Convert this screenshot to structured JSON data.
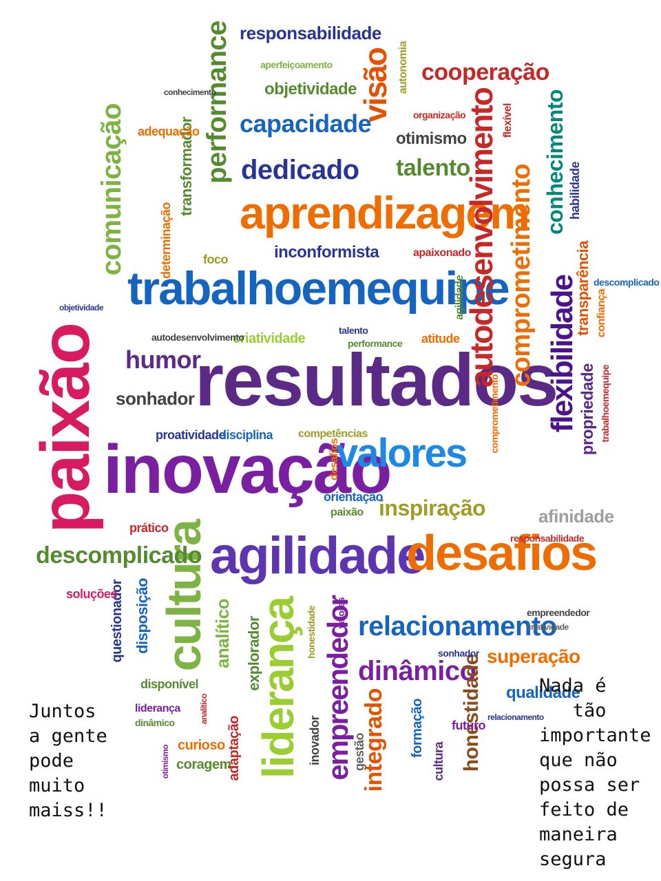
{
  "palette": {
    "magenta": "#d81b60",
    "purple": "#5b2a86",
    "violet": "#7b1fa2",
    "blue": "#1565c0",
    "navy": "#283593",
    "orange": "#ef6c00",
    "darkorange": "#e65100",
    "green": "#7cb342",
    "darkgreen": "#558b2f",
    "teal": "#00897b",
    "red": "#c62828",
    "brown": "#8d4a1a",
    "olive": "#9e9d24",
    "gray": "#616161"
  },
  "word_cloud": [
    {
      "text": "resultados",
      "color": "#5b2a86"
    },
    {
      "text": "inovação",
      "color": "#7b1fa2"
    },
    {
      "text": "paixão",
      "color": "#d81b60"
    },
    {
      "text": "trabalhoemequipe",
      "color": "#1565c0"
    },
    {
      "text": "aprendizagem",
      "color": "#ef6c00"
    },
    {
      "text": "agilidade",
      "color": "#5e35b1"
    },
    {
      "text": "desafios",
      "color": "#ef6c00"
    },
    {
      "text": "cultura",
      "color": "#7cb342"
    },
    {
      "text": "valores",
      "color": "#1e88e5"
    },
    {
      "text": "liderança",
      "color": "#9acd32"
    },
    {
      "text": "empreendedor",
      "color": "#7b1fa2"
    },
    {
      "text": "autodesenvolvimento",
      "color": "#c62828"
    },
    {
      "text": "comprometimento",
      "color": "#ef6c00"
    },
    {
      "text": "flexibilidade",
      "color": "#4a148c"
    },
    {
      "text": "visão",
      "color": "#e65100"
    },
    {
      "text": "performance",
      "color": "#558b2f"
    },
    {
      "text": "comunicação",
      "color": "#7cb342"
    },
    {
      "text": "relacionamento",
      "color": "#1565c0"
    },
    {
      "text": "dinâmico",
      "color": "#7b1fa2"
    },
    {
      "text": "integrado",
      "color": "#e65100"
    },
    {
      "text": "honestidade",
      "color": "#8d4a1a"
    },
    {
      "text": "descomplicado",
      "color": "#558b2f"
    },
    {
      "text": "cooperação",
      "color": "#c62828"
    },
    {
      "text": "capacidade",
      "color": "#1565c0"
    },
    {
      "text": "dedicado",
      "color": "#283593"
    },
    {
      "text": "responsabilidade",
      "color": "#283593"
    },
    {
      "text": "talento",
      "color": "#558b2f"
    },
    {
      "text": "conhecimento",
      "color": "#00897b"
    },
    {
      "text": "humor",
      "color": "#5b2a86"
    },
    {
      "text": "sonhador",
      "color": "#424242"
    },
    {
      "text": "inspiração",
      "color": "#9e9d24"
    },
    {
      "text": "superação",
      "color": "#ef6c00"
    },
    {
      "text": "inconformista",
      "color": "#283593"
    },
    {
      "text": "objetividade",
      "color": "#558b2f"
    },
    {
      "text": "transformador",
      "color": "#558b2f"
    },
    {
      "text": "otimismo",
      "color": "#424242"
    },
    {
      "text": "propriedade",
      "color": "#5b2a86"
    },
    {
      "text": "transparência",
      "color": "#e65100"
    },
    {
      "text": "analítico",
      "color": "#7cb342"
    },
    {
      "text": "explorador",
      "color": "#558b2f"
    },
    {
      "text": "disposição",
      "color": "#1565c0"
    },
    {
      "text": "questionador",
      "color": "#283593"
    },
    {
      "text": "qualidade",
      "color": "#1565c0"
    },
    {
      "text": "afinidade",
      "color": "#9e9e9e"
    },
    {
      "text": "criatividade",
      "color": "#9acd32"
    },
    {
      "text": "proatividade",
      "color": "#283593"
    },
    {
      "text": "disciplina",
      "color": "#1565c0"
    },
    {
      "text": "adequação",
      "color": "#ef6c00"
    },
    {
      "text": "determinação",
      "color": "#ef6c00"
    },
    {
      "text": "prático",
      "color": "#c62828"
    },
    {
      "text": "soluções",
      "color": "#d81b60"
    },
    {
      "text": "habilidade",
      "color": "#283593"
    },
    {
      "text": "confiança",
      "color": "#ef6c00"
    },
    {
      "text": "atitude",
      "color": "#ef6c00"
    },
    {
      "text": "orientação",
      "color": "#1565c0"
    },
    {
      "text": "autonomia",
      "color": "#9e9d24"
    },
    {
      "text": "aperfeiçoamento",
      "color": "#7cb342"
    },
    {
      "text": "foco",
      "color": "#9e9d24"
    },
    {
      "text": "apaixonado",
      "color": "#c62828"
    },
    {
      "text": "agilidade",
      "color": "#558b2f"
    },
    {
      "text": "flexível",
      "color": "#c62828"
    },
    {
      "text": "organização",
      "color": "#c62828"
    },
    {
      "text": "competências",
      "color": "#9e9d24"
    },
    {
      "text": "desafios",
      "color": "#ef6c00"
    },
    {
      "text": "paixão",
      "color": "#558b2f"
    },
    {
      "text": "curioso",
      "color": "#ef6c00"
    },
    {
      "text": "coragem",
      "color": "#558b2f"
    },
    {
      "text": "disponível",
      "color": "#558b2f"
    },
    {
      "text": "liderança",
      "color": "#7b1fa2"
    },
    {
      "text": "dinâmico",
      "color": "#558b2f"
    },
    {
      "text": "adaptação",
      "color": "#c62828"
    },
    {
      "text": "inovador",
      "color": "#424242"
    },
    {
      "text": "gestão",
      "color": "#616161"
    },
    {
      "text": "formação",
      "color": "#1565c0"
    },
    {
      "text": "futuro",
      "color": "#7b1fa2"
    },
    {
      "text": "cultura",
      "color": "#5b2a86"
    },
    {
      "text": "empreendedor",
      "color": "#424242"
    },
    {
      "text": "relacionamento",
      "color": "#283593"
    },
    {
      "text": "responsabilidade",
      "color": "#c62828"
    },
    {
      "text": "descomplicado",
      "color": "#1565c0"
    },
    {
      "text": "trabalhoemequipe",
      "color": "#c62828"
    },
    {
      "text": "sonhador",
      "color": "#283593"
    },
    {
      "text": "performance",
      "color": "#558b2f"
    },
    {
      "text": "talento",
      "color": "#283593"
    },
    {
      "text": "autodesenvolvimento",
      "color": "#424242"
    },
    {
      "text": "comprometimento",
      "color": "#ef6c00"
    },
    {
      "text": "valores",
      "color": "#7b1fa2"
    },
    {
      "text": "honestidade",
      "color": "#9e9d24"
    },
    {
      "text": "otimismo",
      "color": "#7b1fa2"
    },
    {
      "text": "analítico",
      "color": "#c62828"
    },
    {
      "text": "conhecimento",
      "color": "#424242"
    },
    {
      "text": "objetividade",
      "color": "#283593"
    },
    {
      "text": "criatividade",
      "color": "#616161"
    }
  ],
  "captions": {
    "left": [
      "Juntos",
      "a gente",
      "pode",
      "muito",
      "maiss!!"
    ],
    "right": [
      "Nada é",
      "   tão",
      "importante",
      "que não",
      "possa ser",
      "feito de",
      "maneira",
      "segura"
    ]
  }
}
